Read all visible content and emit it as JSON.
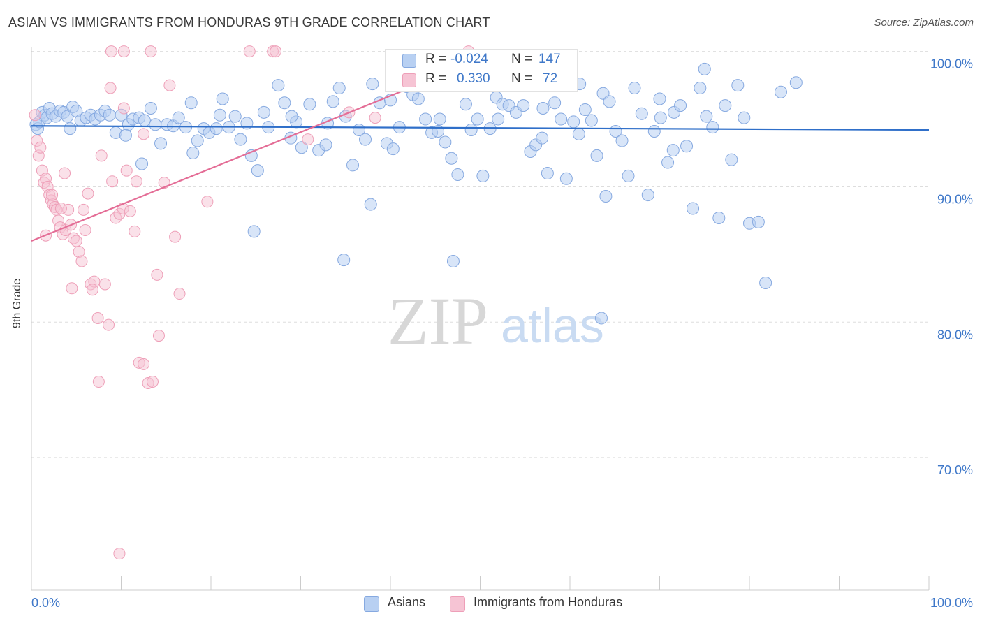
{
  "title": "ASIAN VS IMMIGRANTS FROM HONDURAS 9TH GRADE CORRELATION CHART",
  "source": "Source: ZipAtlas.com",
  "watermark": {
    "zip": "ZIP",
    "atlas": "atlas"
  },
  "colors": {
    "asian_fill": "#b8d0f2",
    "asian_stroke": "#86a9e0",
    "asian_line": "#2f6fc9",
    "honduras_fill": "#f6c4d4",
    "honduras_stroke": "#ee9fb8",
    "honduras_line": "#e46d96",
    "axis_label_blue": "#3f78c9",
    "grid": "#dddddd"
  },
  "legend": {
    "rows": [
      {
        "r_label": "R = ",
        "r_value": "-0.024",
        "n_label": "N = ",
        "n_value": "147"
      },
      {
        "r_label": "R = ",
        "r_value": "0.330",
        "n_label": "N = ",
        "n_value": "72"
      }
    ]
  },
  "bottom_legend": {
    "asians": "Asians",
    "honduras": "Immigrants from Honduras"
  },
  "chart_data": {
    "type": "scatter",
    "title": "ASIAN VS IMMIGRANTS FROM HONDURAS 9TH GRADE CORRELATION CHART",
    "xlabel": "",
    "ylabel": "9th Grade",
    "xlim": [
      0,
      100
    ],
    "ylim": [
      60.2,
      100.6
    ],
    "x_tick_labels": [
      "0.0%",
      "100.0%"
    ],
    "y_tick_values": [
      70,
      80,
      90,
      100
    ],
    "y_tick_labels": [
      "70.0%",
      "80.0%",
      "90.0%",
      "100.0%"
    ],
    "grid": "horizontal dashed",
    "legend_position": "top-center",
    "series": [
      {
        "name": "Asians",
        "r": -0.024,
        "n": 147,
        "trend": {
          "x": [
            0,
            100
          ],
          "y": [
            94.5,
            94.2
          ]
        },
        "points": [
          [
            0.5,
            94.6
          ],
          [
            0.7,
            94.3
          ],
          [
            0.9,
            94.8
          ],
          [
            1.2,
            95.5
          ],
          [
            1.5,
            95.3
          ],
          [
            1.7,
            95.1
          ],
          [
            2.0,
            95.8
          ],
          [
            2.3,
            95.4
          ],
          [
            2.7,
            95.2
          ],
          [
            3.2,
            95.6
          ],
          [
            3.6,
            95.5
          ],
          [
            4.0,
            95.2
          ],
          [
            4.6,
            95.9
          ],
          [
            5.0,
            95.6
          ],
          [
            5.5,
            94.9
          ],
          [
            6.1,
            95.1
          ],
          [
            6.6,
            95.3
          ],
          [
            7.1,
            95.0
          ],
          [
            7.7,
            95.3
          ],
          [
            8.2,
            95.6
          ],
          [
            8.7,
            95.3
          ],
          [
            9.4,
            94.0
          ],
          [
            10.0,
            95.3
          ],
          [
            10.8,
            94.6
          ],
          [
            11.3,
            95.0
          ],
          [
            12.0,
            95.1
          ],
          [
            12.6,
            94.9
          ],
          [
            13.3,
            95.8
          ],
          [
            13.8,
            94.6
          ],
          [
            14.4,
            93.2
          ],
          [
            15.1,
            94.6
          ],
          [
            15.8,
            94.5
          ],
          [
            16.4,
            95.1
          ],
          [
            17.2,
            94.4
          ],
          [
            17.8,
            96.2
          ],
          [
            18.5,
            93.4
          ],
          [
            19.2,
            94.3
          ],
          [
            19.8,
            94.0
          ],
          [
            20.6,
            94.3
          ],
          [
            21.3,
            96.5
          ],
          [
            22.0,
            94.4
          ],
          [
            22.7,
            95.2
          ],
          [
            23.3,
            93.5
          ],
          [
            24.0,
            94.7
          ],
          [
            24.5,
            92.3
          ],
          [
            25.2,
            91.2
          ],
          [
            25.9,
            95.5
          ],
          [
            26.4,
            94.4
          ],
          [
            27.5,
            97.5
          ],
          [
            28.2,
            96.2
          ],
          [
            28.9,
            93.6
          ],
          [
            29.5,
            94.8
          ],
          [
            30.1,
            92.9
          ],
          [
            31.0,
            96.1
          ],
          [
            32.0,
            92.7
          ],
          [
            32.8,
            93.1
          ],
          [
            33.6,
            96.3
          ],
          [
            34.3,
            97.3
          ],
          [
            35.0,
            95.2
          ],
          [
            35.8,
            91.6
          ],
          [
            36.5,
            94.2
          ],
          [
            37.2,
            93.5
          ],
          [
            38.0,
            97.6
          ],
          [
            38.8,
            96.2
          ],
          [
            39.6,
            93.2
          ],
          [
            40.3,
            92.8
          ],
          [
            41.0,
            94.4
          ],
          [
            41.8,
            97.4
          ],
          [
            42.5,
            96.8
          ],
          [
            43.1,
            96.5
          ],
          [
            43.9,
            95.0
          ],
          [
            44.6,
            94.0
          ],
          [
            45.3,
            94.1
          ],
          [
            46.1,
            93.3
          ],
          [
            46.8,
            92.1
          ],
          [
            47.5,
            90.9
          ],
          [
            48.4,
            96.1
          ],
          [
            49.0,
            94.2
          ],
          [
            49.7,
            95.0
          ],
          [
            50.3,
            90.8
          ],
          [
            51.1,
            94.3
          ],
          [
            51.8,
            96.6
          ],
          [
            52.5,
            96.1
          ],
          [
            53.2,
            96.0
          ],
          [
            54.0,
            95.5
          ],
          [
            54.8,
            96.0
          ],
          [
            55.6,
            92.6
          ],
          [
            56.2,
            93.1
          ],
          [
            56.9,
            93.6
          ],
          [
            57.5,
            91.0
          ],
          [
            58.3,
            96.2
          ],
          [
            59.0,
            95.0
          ],
          [
            59.6,
            90.6
          ],
          [
            60.4,
            94.8
          ],
          [
            61.1,
            97.6
          ],
          [
            61.7,
            95.7
          ],
          [
            62.4,
            94.9
          ],
          [
            63.0,
            92.3
          ],
          [
            63.7,
            96.9
          ],
          [
            64.4,
            96.3
          ],
          [
            65.1,
            94.1
          ],
          [
            65.8,
            93.4
          ],
          [
            66.5,
            90.8
          ],
          [
            67.2,
            97.3
          ],
          [
            68.0,
            95.4
          ],
          [
            68.7,
            89.4
          ],
          [
            69.4,
            94.1
          ],
          [
            70.1,
            95.1
          ],
          [
            70.9,
            91.8
          ],
          [
            71.6,
            95.5
          ],
          [
            72.3,
            96.0
          ],
          [
            73.0,
            93.0
          ],
          [
            73.7,
            88.4
          ],
          [
            74.5,
            97.3
          ],
          [
            75.2,
            95.2
          ],
          [
            75.9,
            94.4
          ],
          [
            76.6,
            87.7
          ],
          [
            77.3,
            96.0
          ],
          [
            78.0,
            92.0
          ],
          [
            78.7,
            97.5
          ],
          [
            79.4,
            95.1
          ],
          [
            80.0,
            87.3
          ],
          [
            81.0,
            87.4
          ],
          [
            81.8,
            82.9
          ],
          [
            83.5,
            97.0
          ],
          [
            85.2,
            97.7
          ],
          [
            4.3,
            94.3
          ],
          [
            12.3,
            91.7
          ],
          [
            18.0,
            92.5
          ],
          [
            24.8,
            86.7
          ],
          [
            34.8,
            84.6
          ],
          [
            37.8,
            88.7
          ],
          [
            47.0,
            84.5
          ],
          [
            63.5,
            80.3
          ],
          [
            64.0,
            89.3
          ],
          [
            10.5,
            93.8
          ],
          [
            21.0,
            95.3
          ],
          [
            29.0,
            95.2
          ],
          [
            33.0,
            94.7
          ],
          [
            40.0,
            96.4
          ],
          [
            45.5,
            95.0
          ],
          [
            52.0,
            95.0
          ],
          [
            57.0,
            95.8
          ],
          [
            61.0,
            93.9
          ],
          [
            75.0,
            98.7
          ],
          [
            70.0,
            96.5
          ],
          [
            71.5,
            92.7
          ]
        ]
      },
      {
        "name": "Immigrants from Honduras",
        "r": 0.33,
        "n": 72,
        "trend": {
          "x": [
            0,
            50
          ],
          "y": [
            86.0,
            99.4
          ]
        },
        "points": [
          [
            0.4,
            95.3
          ],
          [
            0.6,
            93.4
          ],
          [
            0.8,
            92.3
          ],
          [
            1.0,
            92.9
          ],
          [
            1.2,
            91.2
          ],
          [
            1.4,
            90.3
          ],
          [
            1.6,
            90.6
          ],
          [
            1.8,
            90.0
          ],
          [
            2.0,
            89.4
          ],
          [
            2.2,
            89.0
          ],
          [
            2.4,
            88.7
          ],
          [
            2.6,
            88.5
          ],
          [
            2.8,
            88.3
          ],
          [
            3.0,
            87.5
          ],
          [
            3.2,
            87.0
          ],
          [
            3.5,
            86.5
          ],
          [
            3.8,
            86.8
          ],
          [
            4.1,
            88.3
          ],
          [
            4.4,
            87.2
          ],
          [
            4.7,
            86.2
          ],
          [
            5.0,
            86.0
          ],
          [
            5.3,
            85.2
          ],
          [
            5.6,
            84.5
          ],
          [
            6.0,
            86.8
          ],
          [
            6.3,
            89.5
          ],
          [
            6.6,
            82.8
          ],
          [
            7.0,
            83.0
          ],
          [
            7.4,
            80.3
          ],
          [
            7.8,
            92.3
          ],
          [
            8.2,
            82.8
          ],
          [
            8.6,
            79.8
          ],
          [
            9.0,
            90.4
          ],
          [
            9.4,
            87.7
          ],
          [
            9.8,
            88.0
          ],
          [
            10.2,
            88.4
          ],
          [
            10.6,
            91.2
          ],
          [
            11.0,
            88.2
          ],
          [
            11.5,
            86.7
          ],
          [
            12.0,
            77.0
          ],
          [
            12.5,
            76.9
          ],
          [
            13.0,
            75.5
          ],
          [
            13.5,
            75.6
          ],
          [
            14.2,
            79.0
          ],
          [
            14.8,
            90.3
          ],
          [
            15.4,
            97.5
          ],
          [
            16.0,
            86.3
          ],
          [
            16.5,
            82.1
          ],
          [
            9.8,
            62.9
          ],
          [
            7.5,
            75.6
          ],
          [
            8.8,
            97.3
          ],
          [
            10.3,
            95.8
          ],
          [
            12.5,
            93.9
          ],
          [
            14.0,
            83.5
          ],
          [
            4.5,
            82.5
          ],
          [
            2.3,
            89.4
          ],
          [
            3.7,
            91.0
          ],
          [
            6.8,
            82.4
          ],
          [
            1.6,
            86.4
          ],
          [
            3.3,
            88.4
          ],
          [
            5.8,
            88.3
          ],
          [
            8.9,
            100.0
          ],
          [
            10.3,
            100.0
          ],
          [
            13.3,
            100.0
          ],
          [
            24.3,
            100.0
          ],
          [
            26.9,
            100.0
          ],
          [
            27.2,
            100.0
          ],
          [
            38.3,
            95.1
          ],
          [
            35.4,
            95.5
          ],
          [
            30.8,
            93.5
          ],
          [
            19.6,
            88.9
          ],
          [
            48.7,
            100.0
          ],
          [
            11.7,
            90.4
          ]
        ]
      }
    ]
  }
}
